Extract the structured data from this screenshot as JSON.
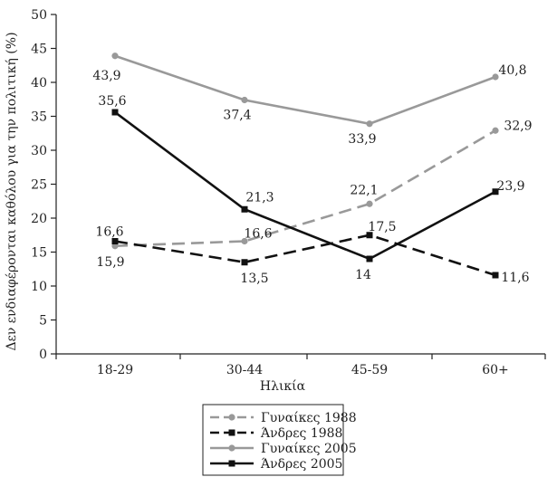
{
  "chart_data": {
    "type": "line",
    "xlabel": "Ηλικία",
    "ylabel": "Δεν ενδιαφέρονται καθόλου για την πολιτική (%)",
    "categories": [
      "18-29",
      "30-44",
      "45-59",
      "60+"
    ],
    "ylim": [
      0,
      50
    ],
    "yticks": [
      0,
      5,
      10,
      15,
      20,
      25,
      30,
      35,
      40,
      45,
      50
    ],
    "grid": false,
    "legend_position": "bottom",
    "series": [
      {
        "name": "Γυναίκες 1988",
        "values": [
          15.9,
          16.6,
          22.1,
          32.9
        ],
        "labels": [
          "15,9",
          "16,6",
          "22,1",
          "32,9"
        ],
        "color": "#999999",
        "style": "dashed",
        "marker": "circle"
      },
      {
        "name": "Άνδρες 1988",
        "values": [
          16.6,
          13.5,
          17.5,
          11.6
        ],
        "labels": [
          "16,6",
          "13,5",
          "17,5",
          "11,6"
        ],
        "color": "#111111",
        "style": "dashed",
        "marker": "square"
      },
      {
        "name": "Γυναίκες 2005",
        "values": [
          43.9,
          37.4,
          33.9,
          40.8
        ],
        "labels": [
          "43,9",
          "37,4",
          "33,9",
          "40,8"
        ],
        "color": "#999999",
        "style": "solid",
        "marker": "circle"
      },
      {
        "name": "Άνδρες 2005",
        "values": [
          35.6,
          21.3,
          14,
          23.9
        ],
        "labels": [
          "35,6",
          "21,3",
          "14",
          "23,9"
        ],
        "color": "#111111",
        "style": "solid",
        "marker": "square"
      }
    ]
  }
}
